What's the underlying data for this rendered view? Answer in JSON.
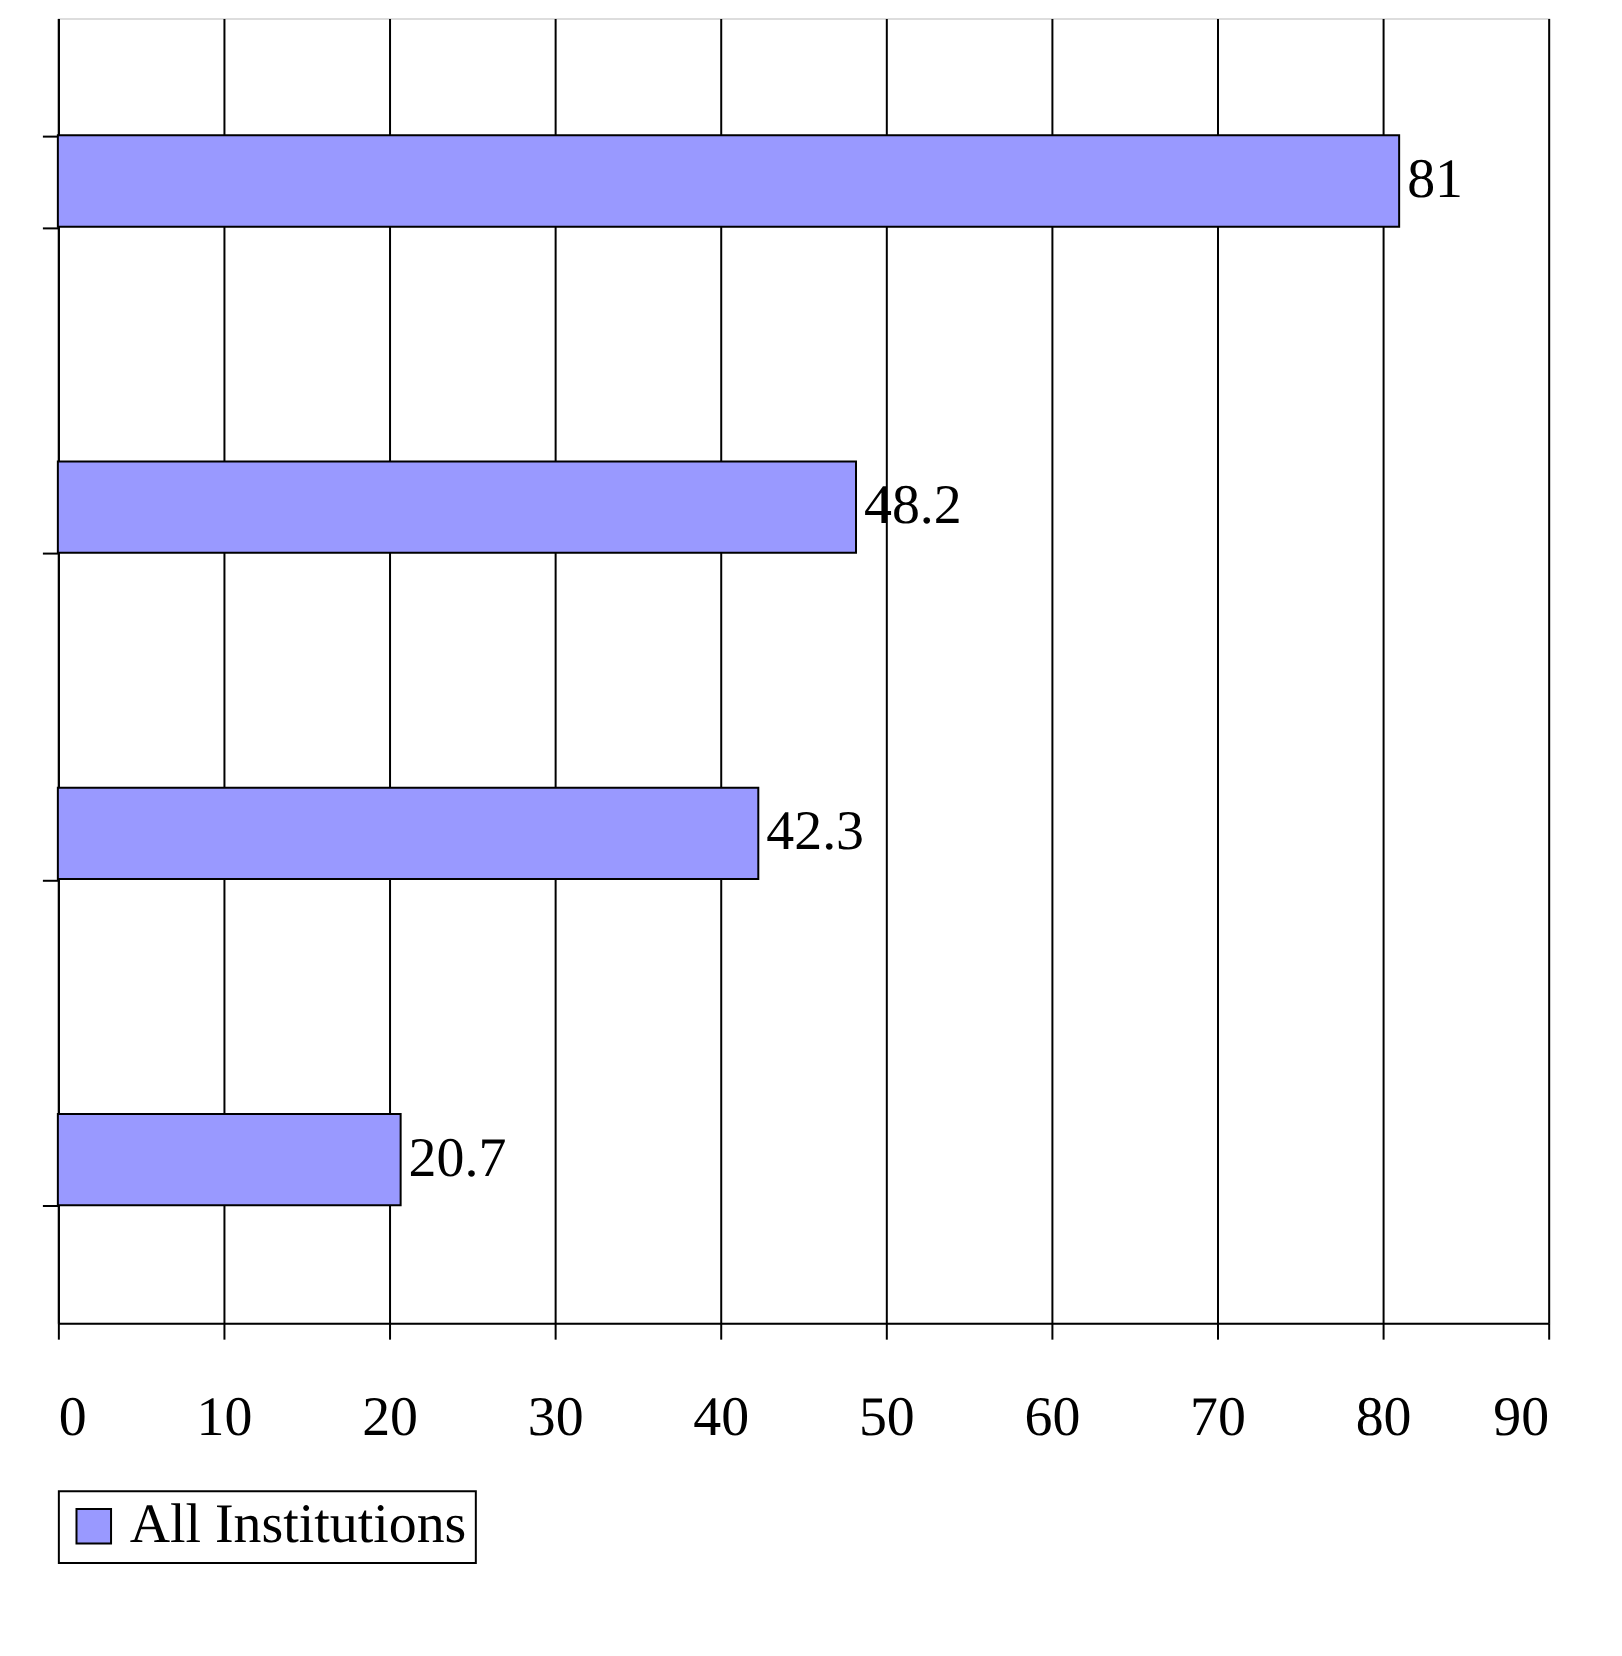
{
  "chart_data": {
    "type": "bar",
    "orientation": "horizontal",
    "categories": [
      null,
      null,
      null,
      null
    ],
    "series": [
      {
        "name": "All Institutions",
        "color": "#9999ff",
        "values": [
          81,
          48.2,
          42.3,
          20.7
        ]
      }
    ],
    "xlim": [
      0,
      90
    ],
    "xticks": [
      0,
      10,
      20,
      30,
      40,
      50,
      60,
      70,
      80,
      90
    ],
    "grid": "x",
    "legend": "bottom",
    "data_labels": true,
    "tick_labels": "x"
  }
}
